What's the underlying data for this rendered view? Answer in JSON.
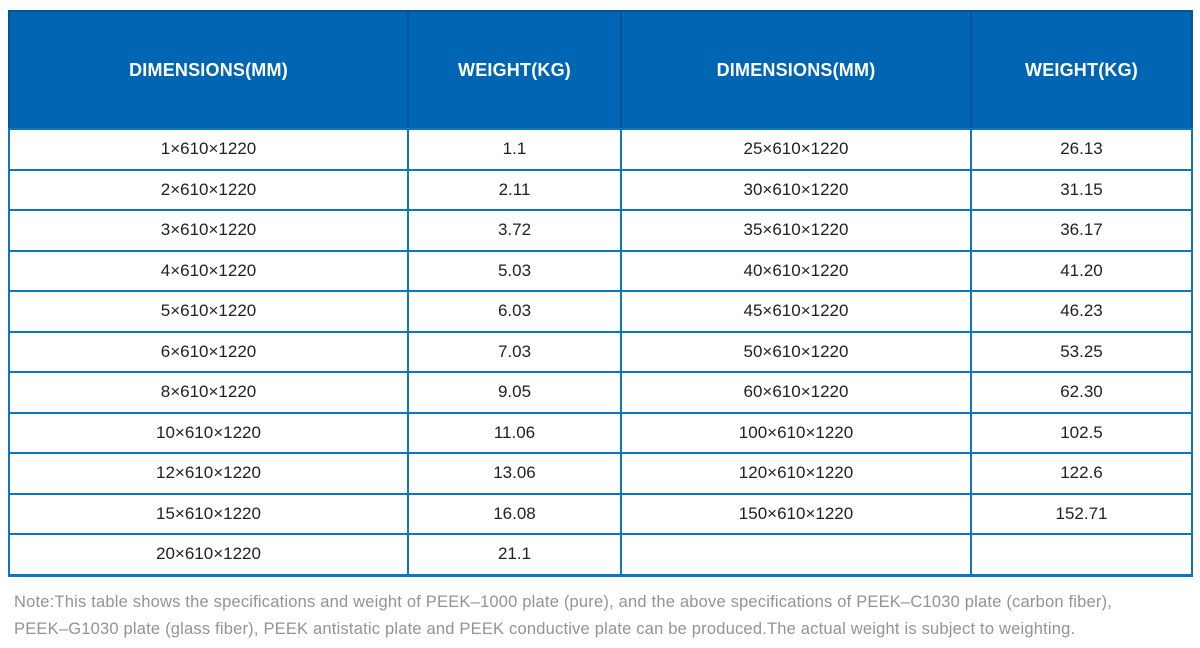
{
  "table": {
    "headers": [
      "DIMENSIONS(MM)",
      "WEIGHT(KG)",
      "DIMENSIONS(MM)",
      "WEIGHT(KG)"
    ],
    "rows": [
      [
        "1×610×1220",
        "1.1",
        "25×610×1220",
        "26.13"
      ],
      [
        "2×610×1220",
        "2.11",
        "30×610×1220",
        "31.15"
      ],
      [
        "3×610×1220",
        "3.72",
        "35×610×1220",
        "36.17"
      ],
      [
        "4×610×1220",
        "5.03",
        "40×610×1220",
        "41.20"
      ],
      [
        "5×610×1220",
        "6.03",
        "45×610×1220",
        "46.23"
      ],
      [
        "6×610×1220",
        "7.03",
        "50×610×1220",
        "53.25"
      ],
      [
        "8×610×1220",
        "9.05",
        "60×610×1220",
        "62.30"
      ],
      [
        "10×610×1220",
        "11.06",
        "100×610×1220",
        "102.5"
      ],
      [
        "12×610×1220",
        "13.06",
        "120×610×1220",
        "122.6"
      ],
      [
        "15×610×1220",
        "16.08",
        "150×610×1220",
        "152.71"
      ],
      [
        "20×610×1220",
        "21.1",
        "",
        ""
      ]
    ]
  },
  "note": {
    "lines": [
      "Note:This table shows the specifications and weight of PEEK–1000 plate (pure), and the above specifications of PEEK–C1030 plate (carbon fiber),",
      "PEEK–G1030 plate (glass fiber), PEEK antistatic plate and PEEK conductive plate can be produced.The actual weight is subject to weighting."
    ]
  },
  "colors": {
    "header_bg": "#0065b2",
    "header_text": "#ffffff",
    "header_divider": "#02539e",
    "grid": "#0d76c3",
    "body_text": "#212121",
    "note_text": "#8f9499"
  }
}
